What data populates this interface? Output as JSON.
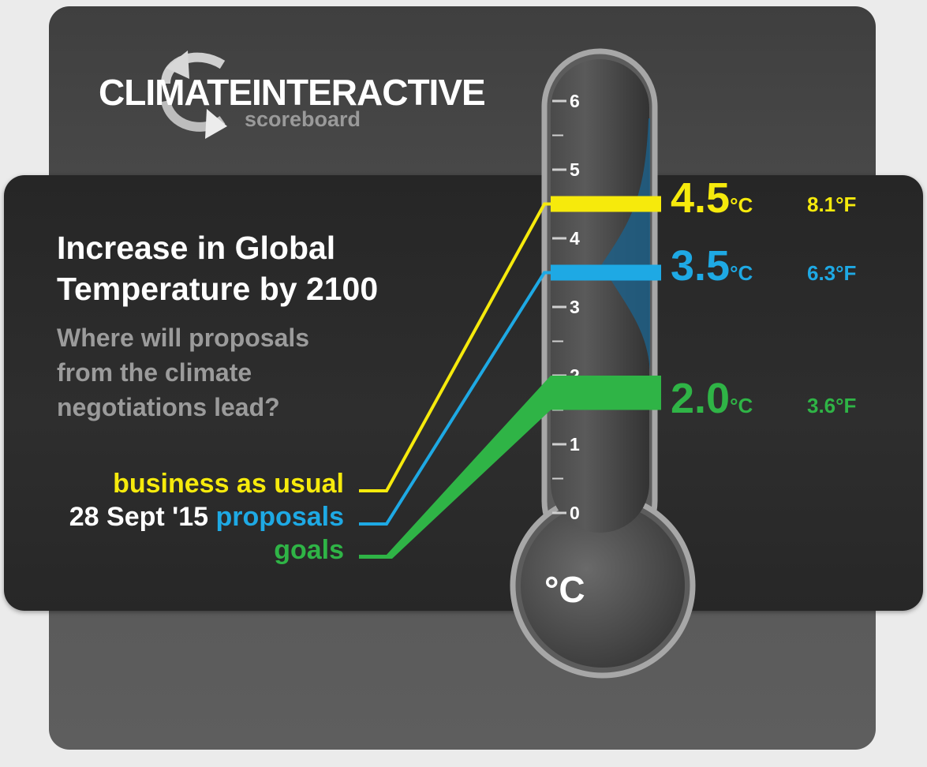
{
  "logo": {
    "brand": "CLIMATEINTERACTIVE",
    "sub": "scoreboard"
  },
  "title": "Increase in Global Temperature by 2100",
  "subtitle": "Where will proposals from the climate negotiations lead?",
  "scenario_labels": {
    "bau": "business as usual",
    "date": "28 Sept '15",
    "proposals": "proposals",
    "goals": "goals"
  },
  "unit_c": "°C",
  "unit_f": "°F",
  "bulb_label": "°C",
  "colors": {
    "bau": "#f6ea0c",
    "proposals": "#1ea9e4",
    "goals": "#2fb446",
    "band": "#1f5f86"
  },
  "chart_data": {
    "type": "bar",
    "ylabel": "°C",
    "ylim": [
      0,
      6
    ],
    "ticks": [
      0,
      1,
      2,
      3,
      4,
      5,
      6
    ],
    "series": [
      {
        "key": "bau",
        "name": "business as usual",
        "value_c": 4.5,
        "value_c_text": "4.5",
        "value_f_text": "8.1"
      },
      {
        "key": "proposals",
        "name": "proposals",
        "value_c": 3.5,
        "value_c_text": "3.5",
        "value_f_text": "6.3"
      },
      {
        "key": "goals",
        "name": "goals",
        "value_c_range": [
          1.5,
          2.0
        ],
        "value_c_text": "2.0",
        "value_f_text": "3.6"
      }
    ]
  }
}
